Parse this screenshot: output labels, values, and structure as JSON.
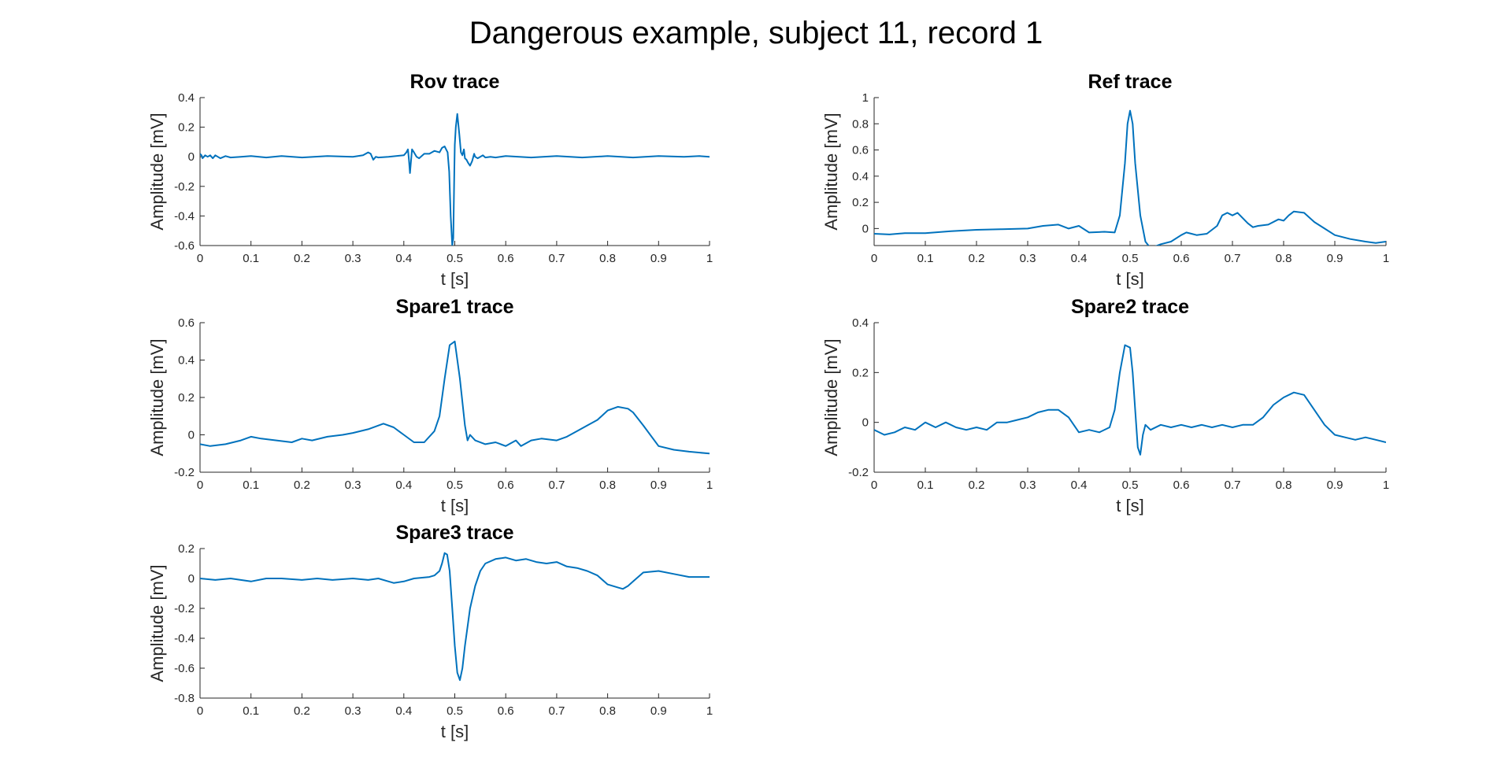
{
  "figure_title": "Dangerous example, subject 11, record 1",
  "trace_color": "#0072BD",
  "chart_data": [
    {
      "type": "line",
      "title": "Rov trace",
      "xlabel": "t [s]",
      "ylabel": "Amplitude [mV]",
      "xlim": [
        0,
        1
      ],
      "ylim": [
        -0.6,
        0.4
      ],
      "xticks": [
        0,
        0.1,
        0.2,
        0.3,
        0.4,
        0.5,
        0.6,
        0.7,
        0.8,
        0.9,
        1
      ],
      "xtick_labels": [
        "0",
        "0.1",
        "0.2",
        "0.3",
        "0.4",
        "0.5",
        "0.6",
        "0.7",
        "0.8",
        "0.9",
        "1"
      ],
      "yticks": [
        -0.6,
        -0.4,
        -0.2,
        0,
        0.2,
        0.4
      ],
      "ytick_labels": [
        "-0.6",
        "-0.4",
        "-0.2",
        "0",
        "0.2",
        "0.4"
      ],
      "grid": false,
      "series": [
        {
          "x": [
            0,
            0.003,
            0.005,
            0.01,
            0.015,
            0.02,
            0.025,
            0.03,
            0.035,
            0.04,
            0.05,
            0.06,
            0.08,
            0.1,
            0.13,
            0.16,
            0.2,
            0.25,
            0.3,
            0.32,
            0.33,
            0.335,
            0.34,
            0.345,
            0.35,
            0.37,
            0.4,
            0.405,
            0.408,
            0.41,
            0.412,
            0.414,
            0.416,
            0.42,
            0.425,
            0.43,
            0.44,
            0.45,
            0.46,
            0.47,
            0.475,
            0.48,
            0.483,
            0.486,
            0.489,
            0.492,
            0.495,
            0.497,
            0.499,
            0.5,
            0.502,
            0.505,
            0.509,
            0.512,
            0.515,
            0.518,
            0.52,
            0.523,
            0.526,
            0.53,
            0.534,
            0.538,
            0.54,
            0.545,
            0.55,
            0.555,
            0.56,
            0.57,
            0.58,
            0.6,
            0.65,
            0.7,
            0.75,
            0.8,
            0.85,
            0.9,
            0.95,
            0.98,
            1
          ],
          "y": [
            0.02,
            0.01,
            -0.01,
            0.01,
            0,
            0.01,
            -0.01,
            0.01,
            0,
            -0.01,
            0.005,
            -0.005,
            0,
            0.005,
            -0.005,
            0.005,
            -0.005,
            0.005,
            0,
            0.01,
            0.03,
            0.02,
            -0.02,
            0,
            -0.005,
            0,
            0.01,
            0.03,
            0.05,
            -0.02,
            -0.11,
            -0.03,
            0.05,
            0.03,
            0,
            -0.01,
            0.02,
            0.02,
            0.04,
            0.03,
            0.06,
            0.07,
            0.05,
            0.03,
            -0.1,
            -0.4,
            -0.6,
            -0.55,
            -0.1,
            0.08,
            0.2,
            0.29,
            0.15,
            0.03,
            0.01,
            0.05,
            -0.01,
            -0.02,
            -0.04,
            -0.06,
            -0.03,
            0.02,
            0,
            -0.01,
            0,
            0.01,
            -0.005,
            0,
            -0.005,
            0.005,
            -0.005,
            0.005,
            -0.005,
            0.005,
            -0.005,
            0.005,
            0,
            0.005,
            0
          ]
        }
      ]
    },
    {
      "type": "line",
      "title": "Ref trace",
      "xlabel": "t [s]",
      "ylabel": "Amplitude [mV]",
      "xlim": [
        0,
        1
      ],
      "ylim": [
        -0.13,
        1
      ],
      "xticks": [
        0,
        0.1,
        0.2,
        0.3,
        0.4,
        0.5,
        0.6,
        0.7,
        0.8,
        0.9,
        1
      ],
      "xtick_labels": [
        "0",
        "0.1",
        "0.2",
        "0.3",
        "0.4",
        "0.5",
        "0.6",
        "0.7",
        "0.8",
        "0.9",
        "1"
      ],
      "yticks": [
        0,
        0.2,
        0.4,
        0.6,
        0.8,
        1
      ],
      "ytick_labels": [
        "0",
        "0.2",
        "0.4",
        "0.6",
        "0.8",
        "1"
      ],
      "grid": false,
      "series": [
        {
          "x": [
            0,
            0.03,
            0.06,
            0.1,
            0.15,
            0.2,
            0.25,
            0.3,
            0.33,
            0.36,
            0.38,
            0.4,
            0.42,
            0.45,
            0.47,
            0.48,
            0.49,
            0.495,
            0.5,
            0.505,
            0.51,
            0.52,
            0.53,
            0.54,
            0.56,
            0.58,
            0.6,
            0.61,
            0.62,
            0.63,
            0.65,
            0.67,
            0.68,
            0.69,
            0.7,
            0.71,
            0.72,
            0.73,
            0.74,
            0.75,
            0.77,
            0.79,
            0.8,
            0.81,
            0.82,
            0.84,
            0.86,
            0.88,
            0.9,
            0.93,
            0.96,
            0.98,
            1
          ],
          "y": [
            -0.04,
            -0.045,
            -0.035,
            -0.035,
            -0.02,
            -0.01,
            -0.005,
            0,
            0.02,
            0.03,
            0,
            0.02,
            -0.03,
            -0.025,
            -0.03,
            0.1,
            0.5,
            0.8,
            0.9,
            0.8,
            0.5,
            0.1,
            -0.1,
            -0.15,
            -0.12,
            -0.1,
            -0.05,
            -0.03,
            -0.04,
            -0.05,
            -0.04,
            0.02,
            0.1,
            0.12,
            0.1,
            0.12,
            0.08,
            0.04,
            0.01,
            0.02,
            0.03,
            0.07,
            0.06,
            0.1,
            0.13,
            0.12,
            0.05,
            0,
            -0.05,
            -0.08,
            -0.1,
            -0.11,
            -0.1
          ]
        }
      ]
    },
    {
      "type": "line",
      "title": "Spare1 trace",
      "xlabel": "t [s]",
      "ylabel": "Amplitude [mV]",
      "xlim": [
        0,
        1
      ],
      "ylim": [
        -0.2,
        0.6
      ],
      "xticks": [
        0,
        0.1,
        0.2,
        0.3,
        0.4,
        0.5,
        0.6,
        0.7,
        0.8,
        0.9,
        1
      ],
      "xtick_labels": [
        "0",
        "0.1",
        "0.2",
        "0.3",
        "0.4",
        "0.5",
        "0.6",
        "0.7",
        "0.8",
        "0.9",
        "1"
      ],
      "yticks": [
        -0.2,
        0,
        0.2,
        0.4,
        0.6
      ],
      "ytick_labels": [
        "-0.2",
        "0",
        "0.2",
        "0.4",
        "0.6"
      ],
      "grid": false,
      "series": [
        {
          "x": [
            0,
            0.02,
            0.05,
            0.08,
            0.1,
            0.12,
            0.15,
            0.18,
            0.2,
            0.22,
            0.25,
            0.28,
            0.3,
            0.33,
            0.36,
            0.38,
            0.4,
            0.42,
            0.44,
            0.46,
            0.47,
            0.48,
            0.49,
            0.5,
            0.51,
            0.52,
            0.525,
            0.53,
            0.54,
            0.56,
            0.58,
            0.6,
            0.62,
            0.63,
            0.65,
            0.67,
            0.7,
            0.72,
            0.74,
            0.76,
            0.78,
            0.8,
            0.82,
            0.84,
            0.85,
            0.87,
            0.9,
            0.93,
            0.96,
            1
          ],
          "y": [
            -0.05,
            -0.06,
            -0.05,
            -0.03,
            -0.01,
            -0.02,
            -0.03,
            -0.04,
            -0.02,
            -0.03,
            -0.01,
            0,
            0.01,
            0.03,
            0.06,
            0.04,
            0,
            -0.04,
            -0.04,
            0.02,
            0.1,
            0.3,
            0.48,
            0.5,
            0.3,
            0.05,
            -0.03,
            0,
            -0.03,
            -0.05,
            -0.04,
            -0.06,
            -0.03,
            -0.06,
            -0.03,
            -0.02,
            -0.03,
            -0.01,
            0.02,
            0.05,
            0.08,
            0.13,
            0.15,
            0.14,
            0.12,
            0.05,
            -0.06,
            -0.08,
            -0.09,
            -0.1
          ]
        }
      ]
    },
    {
      "type": "line",
      "title": "Spare2 trace",
      "xlabel": "t [s]",
      "ylabel": "Amplitude [mV]",
      "xlim": [
        0,
        1
      ],
      "ylim": [
        -0.2,
        0.4
      ],
      "xticks": [
        0,
        0.1,
        0.2,
        0.3,
        0.4,
        0.5,
        0.6,
        0.7,
        0.8,
        0.9,
        1
      ],
      "xtick_labels": [
        "0",
        "0.1",
        "0.2",
        "0.3",
        "0.4",
        "0.5",
        "0.6",
        "0.7",
        "0.8",
        "0.9",
        "1"
      ],
      "yticks": [
        -0.2,
        0,
        0.2,
        0.4
      ],
      "ytick_labels": [
        "-0.2",
        "0",
        "0.2",
        "0.4"
      ],
      "grid": false,
      "series": [
        {
          "x": [
            0,
            0.02,
            0.04,
            0.06,
            0.08,
            0.1,
            0.12,
            0.14,
            0.16,
            0.18,
            0.2,
            0.22,
            0.24,
            0.26,
            0.28,
            0.3,
            0.32,
            0.34,
            0.36,
            0.38,
            0.4,
            0.42,
            0.44,
            0.46,
            0.47,
            0.48,
            0.49,
            0.5,
            0.505,
            0.51,
            0.515,
            0.52,
            0.525,
            0.53,
            0.54,
            0.56,
            0.58,
            0.6,
            0.62,
            0.64,
            0.66,
            0.68,
            0.7,
            0.72,
            0.74,
            0.76,
            0.78,
            0.8,
            0.82,
            0.84,
            0.86,
            0.88,
            0.9,
            0.92,
            0.94,
            0.96,
            0.98,
            1
          ],
          "y": [
            -0.03,
            -0.05,
            -0.04,
            -0.02,
            -0.03,
            0,
            -0.02,
            0,
            -0.02,
            -0.03,
            -0.02,
            -0.03,
            0,
            0,
            0.01,
            0.02,
            0.04,
            0.05,
            0.05,
            0.02,
            -0.04,
            -0.03,
            -0.04,
            -0.02,
            0.05,
            0.2,
            0.31,
            0.3,
            0.2,
            0.05,
            -0.1,
            -0.13,
            -0.05,
            -0.01,
            -0.03,
            -0.01,
            -0.02,
            -0.01,
            -0.02,
            -0.01,
            -0.02,
            -0.01,
            -0.02,
            -0.01,
            -0.01,
            0.02,
            0.07,
            0.1,
            0.12,
            0.11,
            0.05,
            -0.01,
            -0.05,
            -0.06,
            -0.07,
            -0.06,
            -0.07,
            -0.08
          ]
        }
      ]
    },
    {
      "type": "line",
      "title": "Spare3 trace",
      "xlabel": "t [s]",
      "ylabel": "Amplitude [mV]",
      "xlim": [
        0,
        1
      ],
      "ylim": [
        -0.8,
        0.2
      ],
      "xticks": [
        0,
        0.1,
        0.2,
        0.3,
        0.4,
        0.5,
        0.6,
        0.7,
        0.8,
        0.9,
        1
      ],
      "xtick_labels": [
        "0",
        "0.1",
        "0.2",
        "0.3",
        "0.4",
        "0.5",
        "0.6",
        "0.7",
        "0.8",
        "0.9",
        "1"
      ],
      "yticks": [
        -0.8,
        -0.6,
        -0.4,
        -0.2,
        0,
        0.2
      ],
      "ytick_labels": [
        "-0.8",
        "-0.6",
        "-0.4",
        "-0.2",
        "0",
        "0.2"
      ],
      "grid": false,
      "series": [
        {
          "x": [
            0,
            0.03,
            0.06,
            0.1,
            0.13,
            0.16,
            0.2,
            0.23,
            0.26,
            0.3,
            0.33,
            0.35,
            0.37,
            0.38,
            0.4,
            0.42,
            0.45,
            0.46,
            0.47,
            0.475,
            0.48,
            0.485,
            0.49,
            0.495,
            0.5,
            0.505,
            0.51,
            0.515,
            0.52,
            0.53,
            0.54,
            0.55,
            0.56,
            0.58,
            0.6,
            0.62,
            0.64,
            0.66,
            0.68,
            0.7,
            0.72,
            0.74,
            0.76,
            0.78,
            0.8,
            0.82,
            0.83,
            0.84,
            0.85,
            0.87,
            0.9,
            0.93,
            0.96,
            1
          ],
          "y": [
            0,
            -0.01,
            0,
            -0.02,
            0,
            0,
            -0.01,
            0,
            -0.01,
            0,
            -0.01,
            0,
            -0.02,
            -0.03,
            -0.02,
            0,
            0.01,
            0.02,
            0.05,
            0.1,
            0.17,
            0.16,
            0.05,
            -0.2,
            -0.45,
            -0.63,
            -0.68,
            -0.6,
            -0.45,
            -0.2,
            -0.05,
            0.05,
            0.1,
            0.13,
            0.14,
            0.12,
            0.13,
            0.11,
            0.1,
            0.11,
            0.08,
            0.07,
            0.05,
            0.02,
            -0.04,
            -0.06,
            -0.07,
            -0.05,
            -0.02,
            0.04,
            0.05,
            0.03,
            0.01,
            0.01
          ]
        }
      ]
    }
  ]
}
